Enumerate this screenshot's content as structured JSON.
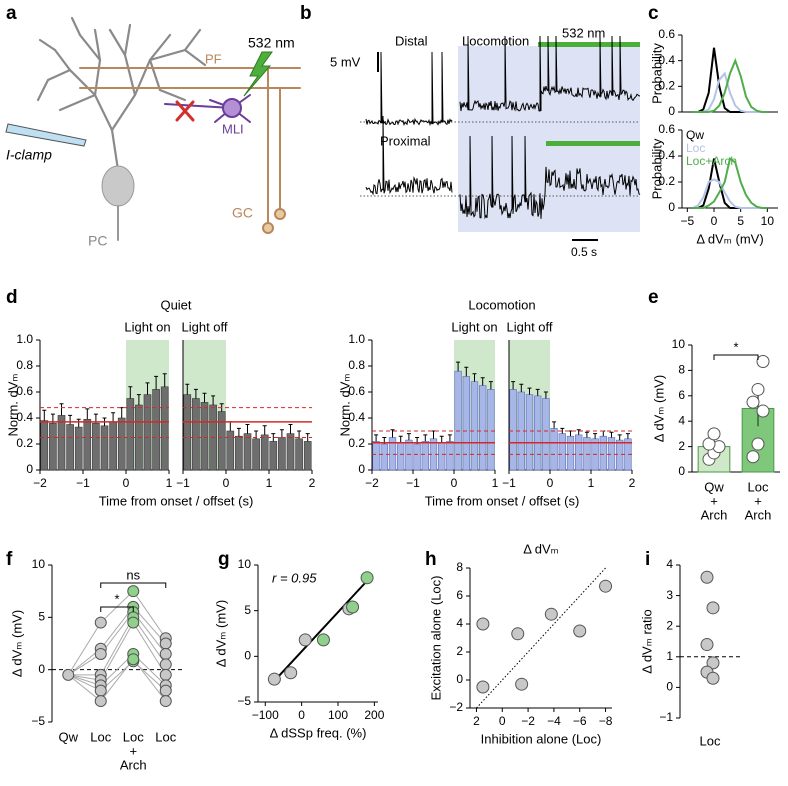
{
  "panel_labels": [
    "a",
    "b",
    "c",
    "d",
    "e",
    "f",
    "g",
    "h",
    "i"
  ],
  "diagram": {
    "fiber": "PF",
    "laser": "532 nm",
    "clamp": "I-clamp",
    "interneuron": "MLI",
    "purkinje": "PC",
    "granule": "GC"
  },
  "traces": {
    "distal": "Distal",
    "locomotion": "Locomotion",
    "light": "532 nm",
    "voltage_scale": "5 mV",
    "proximal": "Proximal",
    "time_scale": "0.5 s"
  },
  "chart_data": [
    {
      "type": "line",
      "ylabel": "Probability",
      "xlim": [
        -6,
        12
      ],
      "ylim": [
        0,
        0.6
      ],
      "yticks": [
        0,
        0.2,
        0.4,
        0.6
      ],
      "x": [
        -4,
        -3,
        -2,
        -1,
        0,
        1,
        2,
        3,
        4,
        5,
        6,
        7,
        8,
        9,
        10
      ],
      "series": [
        {
          "color": "#000000",
          "values": [
            0,
            0,
            0.02,
            0.15,
            0.5,
            0.2,
            0.03,
            0,
            0,
            0,
            0,
            0,
            0,
            0,
            0
          ]
        },
        {
          "color": "#b3c3e8",
          "values": [
            0,
            0,
            0,
            0.02,
            0.1,
            0.25,
            0.3,
            0.15,
            0.05,
            0.01,
            0,
            0,
            0,
            0,
            0
          ]
        },
        {
          "color": "#4fae4a",
          "values": [
            0,
            0,
            0,
            0,
            0.01,
            0.05,
            0.15,
            0.3,
            0.4,
            0.28,
            0.12,
            0.04,
            0.01,
            0,
            0
          ]
        }
      ]
    },
    {
      "type": "line",
      "ylabel": "Probability",
      "xlabel": "Δ dVₘ (mV)",
      "xlim": [
        -6,
        12
      ],
      "ylim": [
        0,
        0.6
      ],
      "yticks": [
        0,
        0.2,
        0.4,
        0.6
      ],
      "xticks": [
        {
          "value": -5,
          "label": "−5"
        },
        0,
        5,
        10
      ],
      "x": [
        -4,
        -3,
        -2,
        -1,
        0,
        1,
        2,
        3,
        4,
        5,
        6,
        7,
        8,
        9,
        10
      ],
      "series": [
        {
          "name": "Qw",
          "color": "#000000",
          "values": [
            0,
            0,
            0.02,
            0.15,
            0.38,
            0.2,
            0.04,
            0,
            0,
            0,
            0,
            0,
            0,
            0,
            0
          ]
        },
        {
          "name": "Loc",
          "color": "#b3c3e8",
          "values": [
            0,
            0.02,
            0.08,
            0.2,
            0.22,
            0.2,
            0.12,
            0.05,
            0.01,
            0,
            0,
            0,
            0,
            0,
            0
          ]
        },
        {
          "name": "Loc+Arch",
          "color": "#4fae4a",
          "values": [
            0,
            0,
            0,
            0.02,
            0.05,
            0.12,
            0.2,
            0.38,
            0.35,
            0.2,
            0.1,
            0.04,
            0.01,
            0,
            0
          ]
        }
      ]
    },
    {
      "type": "bar_timecourse",
      "title": "Quiet",
      "ylabel": "Norm. dVₘ",
      "xlabel": "Time from onset / offset (s)",
      "ylim": [
        0,
        1
      ],
      "yticks": [
        0,
        0.2,
        0.4,
        0.6,
        0.8,
        {
          "value": 1,
          "label": "1.0"
        }
      ],
      "color": "#6e6e6e",
      "edge": "#3a3a3a",
      "reference_color": "#d62728",
      "reference_mean": 0.37,
      "reference_band": [
        0.25,
        0.48
      ],
      "windows": [
        {
          "label": "Light on",
          "xlim": [
            -2,
            1
          ],
          "shade": [
            0,
            1
          ],
          "xticks": [
            {
              "value": -2,
              "label": "−2"
            },
            {
              "value": -1,
              "label": "−1"
            },
            0,
            1
          ],
          "x": [
            -1.9,
            -1.7,
            -1.5,
            -1.3,
            -1.1,
            -0.9,
            -0.7,
            -0.5,
            -0.3,
            -0.1,
            0.1,
            0.3,
            0.5,
            0.7,
            0.9
          ],
          "values": [
            0.38,
            0.36,
            0.42,
            0.35,
            0.33,
            0.39,
            0.36,
            0.34,
            0.37,
            0.4,
            0.55,
            0.5,
            0.58,
            0.62,
            0.64
          ],
          "errors": [
            0.08,
            0.07,
            0.09,
            0.07,
            0.06,
            0.08,
            0.07,
            0.06,
            0.07,
            0.08,
            0.09,
            0.08,
            0.09,
            0.1,
            0.1
          ]
        },
        {
          "label": "Light off",
          "xlim": [
            -1,
            2
          ],
          "shade": [
            -1,
            0
          ],
          "xticks": [
            {
              "value": -1,
              "label": "−1"
            },
            0,
            1,
            2
          ],
          "x": [
            -0.9,
            -0.7,
            -0.5,
            -0.3,
            -0.1,
            0.1,
            0.3,
            0.5,
            0.7,
            0.9,
            1.1,
            1.3,
            1.5,
            1.7,
            1.9
          ],
          "values": [
            0.58,
            0.55,
            0.52,
            0.5,
            0.45,
            0.3,
            0.26,
            0.28,
            0.24,
            0.27,
            0.22,
            0.25,
            0.28,
            0.24,
            0.22
          ],
          "errors": [
            0.08,
            0.07,
            0.07,
            0.07,
            0.06,
            0.07,
            0.06,
            0.07,
            0.06,
            0.07,
            0.06,
            0.06,
            0.07,
            0.06,
            0.06
          ]
        }
      ]
    },
    {
      "type": "bar_timecourse",
      "title": "Locomotion",
      "ylabel": "Norm. dVₘ",
      "xlabel": "Time from onset / offset (s)",
      "ylim": [
        0,
        1
      ],
      "yticks": [
        0,
        0.2,
        0.4,
        0.6,
        0.8,
        {
          "value": 1,
          "label": "1.0"
        }
      ],
      "color": "#a7b6e6",
      "edge": "#5a6fb8",
      "reference_color": "#d62728",
      "reference_mean": 0.21,
      "reference_band": [
        0.12,
        0.3
      ],
      "windows": [
        {
          "label": "Light on",
          "xlim": [
            -2,
            1
          ],
          "shade": [
            0,
            1
          ],
          "xticks": [
            {
              "value": -2,
              "label": "−2"
            },
            {
              "value": -1,
              "label": "−1"
            },
            0,
            1
          ],
          "x": [
            -1.9,
            -1.7,
            -1.5,
            -1.3,
            -1.1,
            -0.9,
            -0.7,
            -0.5,
            -0.3,
            -0.1,
            0.1,
            0.3,
            0.5,
            0.7,
            0.9
          ],
          "values": [
            0.22,
            0.2,
            0.25,
            0.21,
            0.23,
            0.2,
            0.22,
            0.24,
            0.21,
            0.22,
            0.76,
            0.72,
            0.68,
            0.65,
            0.62
          ],
          "errors": [
            0.05,
            0.05,
            0.06,
            0.05,
            0.05,
            0.05,
            0.05,
            0.06,
            0.05,
            0.05,
            0.07,
            0.07,
            0.06,
            0.06,
            0.06
          ]
        },
        {
          "label": "Light off",
          "xlim": [
            -1,
            2
          ],
          "shade": [
            -1,
            0
          ],
          "xticks": [
            {
              "value": -1,
              "label": "−1"
            },
            0,
            1,
            2
          ],
          "x": [
            -0.9,
            -0.7,
            -0.5,
            -0.3,
            -0.1,
            0.1,
            0.3,
            0.5,
            0.7,
            0.9,
            1.1,
            1.3,
            1.5,
            1.7,
            1.9
          ],
          "values": [
            0.62,
            0.6,
            0.58,
            0.57,
            0.55,
            0.32,
            0.28,
            0.26,
            0.27,
            0.25,
            0.24,
            0.26,
            0.25,
            0.23,
            0.24
          ],
          "errors": [
            0.06,
            0.06,
            0.05,
            0.05,
            0.05,
            0.05,
            0.04,
            0.04,
            0.04,
            0.04,
            0.04,
            0.04,
            0.04,
            0.04,
            0.04
          ]
        }
      ]
    },
    {
      "type": "bar_points",
      "ylabel": "Δ dVₘ (mV)",
      "ylim": [
        0,
        10
      ],
      "yticks": [
        0,
        2,
        4,
        6,
        8,
        10
      ],
      "categories": [
        [
          "Qw",
          "+",
          "Arch"
        ],
        [
          "Loc",
          "+",
          "Arch"
        ]
      ],
      "values": [
        2.0,
        5.0
      ],
      "errors": [
        0.5,
        1.4
      ],
      "colors": [
        "#cfe8c7",
        "#7fc77a"
      ],
      "points": [
        [
          1.0,
          1.5,
          2.0,
          2.2,
          3.0
        ],
        [
          1.2,
          2.2,
          4.8,
          5.5,
          6.5,
          8.7
        ]
      ],
      "significance": "*"
    },
    {
      "type": "paired_points",
      "ylabel": "Δ dVₘ (mV)",
      "ylim": [
        -5,
        10
      ],
      "yticks": [
        {
          "value": -5,
          "label": "−5"
        },
        0,
        5,
        10
      ],
      "reference": 0,
      "categories": [
        [
          "Qw"
        ],
        [
          "Loc"
        ],
        [
          "Loc",
          "+",
          "Arch"
        ],
        [
          "Loc"
        ]
      ],
      "colors": [
        "#c8c8c8",
        "#c8c8c8",
        "#8fd18a",
        "#c8c8c8"
      ],
      "points": [
        [
          -0.5
        ],
        [
          4.5,
          2.0,
          1.5,
          -0.5,
          -1.0,
          -1.5,
          -2.0,
          -3.0
        ],
        [
          7.5,
          6.0,
          5.5,
          5.0,
          4.5,
          1.5,
          0.8,
          1.0
        ],
        [
          3.0,
          2.5,
          1.5,
          0.5,
          -0.5,
          -1.5,
          -2.0,
          -3.0
        ]
      ],
      "significance": [
        "*",
        "ns"
      ]
    },
    {
      "type": "scatter",
      "xlabel": "Δ dSSp freq. (%)",
      "ylabel": "Δ dVₘ (mV)",
      "annotation": "r = 0.95",
      "xlim": [
        -120,
        210
      ],
      "xticks": [
        {
          "value": -100,
          "label": "−100"
        },
        0,
        100,
        200
      ],
      "ylim": [
        -5,
        10
      ],
      "yticks": [
        {
          "value": -5,
          "label": "−5"
        },
        0,
        5,
        10
      ],
      "x": [
        -75,
        -30,
        10,
        60,
        130,
        140,
        180
      ],
      "y": [
        -2.5,
        -1.8,
        1.8,
        1.8,
        5.2,
        5.4,
        8.6
      ],
      "colors": [
        "#c8c8c8",
        "#c8c8c8",
        "#c8c8c8",
        "#8fd18a",
        "#c8c8c8",
        "#8fd18a",
        "#8fd18a"
      ],
      "fit": {
        "x": [
          -80,
          190
        ],
        "y": [
          -2.9,
          8.7
        ]
      }
    },
    {
      "type": "scatter",
      "title": "Δ dVₘ",
      "xlabel": "Inhibition alone (Loc)",
      "ylabel": "Excitation alone (Loc)",
      "xlim": [
        2.5,
        -8.5
      ],
      "xticks": [
        2,
        0,
        {
          "value": -2,
          "label": "−2"
        },
        {
          "value": -4,
          "label": "−4"
        },
        {
          "value": -6,
          "label": "−6"
        },
        {
          "value": -8,
          "label": "−8"
        }
      ],
      "ylim": [
        -2,
        8
      ],
      "yticks": [
        {
          "value": -2,
          "label": "−2"
        },
        0,
        2,
        4,
        6,
        8
      ],
      "x": [
        1.5,
        1.5,
        -1.2,
        -1.5,
        -3.8,
        -6.0,
        -8.0
      ],
      "y": [
        4.0,
        -0.5,
        3.3,
        -0.3,
        4.7,
        3.5,
        6.7
      ],
      "colors": [
        "#c8c8c8",
        "#c8c8c8",
        "#c8c8c8",
        "#c8c8c8",
        "#c8c8c8",
        "#c8c8c8",
        "#c8c8c8"
      ],
      "reference_slope": -1
    },
    {
      "type": "strip",
      "ylabel": "Δ dVₘ ratio",
      "ylim": [
        -1,
        4
      ],
      "yticks": [
        {
          "value": -1,
          "label": "−1"
        },
        0,
        1,
        2,
        3,
        4
      ],
      "reference": 1,
      "categories": [
        "Loc"
      ],
      "points": [
        [
          3.6,
          2.6,
          1.4,
          0.8,
          0.5,
          0.3
        ]
      ],
      "color": "#c8c8c8"
    }
  ]
}
